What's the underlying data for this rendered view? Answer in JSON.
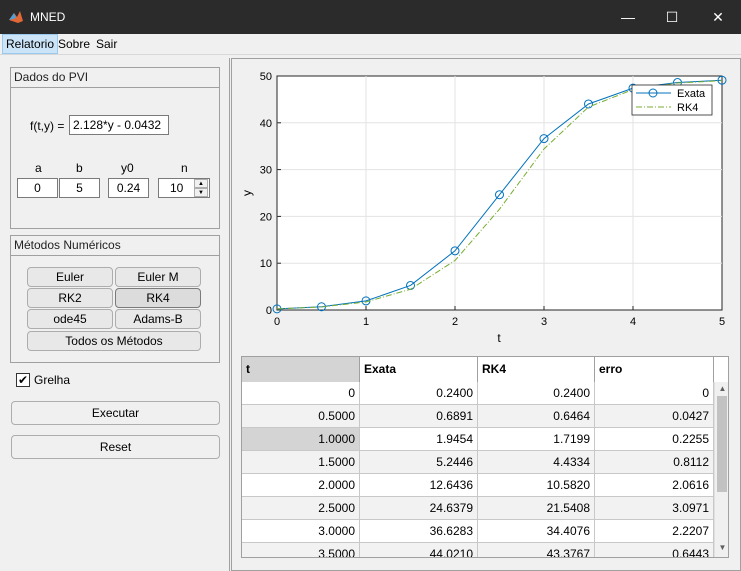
{
  "window": {
    "title": "MNED",
    "min_icon": "minimize-icon",
    "max_icon": "maximize-icon",
    "close_icon": "close-icon"
  },
  "menu": [
    "Relatorio",
    "Sobre",
    "Sair"
  ],
  "pvi": {
    "title": "Dados do PVI",
    "f_label": "f(t,y) =",
    "f_value": "2.128*y - 0.0432",
    "a_label": "a",
    "b_label": "b",
    "y0_label": "y0",
    "n_label": "n",
    "a": "0",
    "b": "5",
    "y0": "0.24",
    "n": "10"
  },
  "methods": {
    "title": "Métodos Numéricos",
    "euler": "Euler",
    "euler_m": "Euler M",
    "rk2": "RK2",
    "rk4": "RK4",
    "ode45": "ode45",
    "adams": "Adams-B",
    "todos": "Todos os Métodos"
  },
  "grelha": {
    "label": "Grelha",
    "checked": "✔"
  },
  "actions": {
    "executar": "Executar",
    "reset": "Reset"
  },
  "plot": {
    "xlabel": "t",
    "ylabel": "y",
    "xticks": [
      "0",
      "1",
      "2",
      "3",
      "4",
      "5"
    ],
    "yticks": [
      "0",
      "10",
      "20",
      "30",
      "40",
      "50"
    ],
    "legend_exata": "Exata",
    "legend_rk4": "RK4"
  },
  "chart_data": {
    "type": "line",
    "xlabel": "t",
    "ylabel": "y",
    "xlim": [
      0,
      5
    ],
    "ylim": [
      0,
      50
    ],
    "grid": true,
    "legend": "top-right",
    "x": [
      0,
      0.5,
      1.0,
      1.5,
      2.0,
      2.5,
      3.0,
      3.5,
      4.0,
      4.5,
      5.0
    ],
    "series": [
      {
        "name": "Exata",
        "values": [
          0.24,
          0.6891,
          1.9454,
          5.2446,
          12.6436,
          24.6379,
          36.6283,
          44.021,
          47.4,
          48.6,
          49.1
        ],
        "color": "#0072bd",
        "marker": "circle"
      },
      {
        "name": "RK4",
        "values": [
          0.24,
          0.6464,
          1.7199,
          4.4334,
          10.582,
          21.5408,
          34.4076,
          43.3767,
          47.1,
          48.5,
          49.0
        ],
        "color": "#77ac30",
        "style": "dash-dot"
      }
    ]
  },
  "table": {
    "headers": [
      "t",
      "Exata",
      "RK4",
      "erro"
    ],
    "rows": [
      [
        "0",
        "0.2400",
        "0.2400",
        "0"
      ],
      [
        "0.5000",
        "0.6891",
        "0.6464",
        "0.0427"
      ],
      [
        "1.0000",
        "1.9454",
        "1.7199",
        "0.2255"
      ],
      [
        "1.5000",
        "5.2446",
        "4.4334",
        "0.8112"
      ],
      [
        "2.0000",
        "12.6436",
        "10.5820",
        "2.0616"
      ],
      [
        "2.5000",
        "24.6379",
        "21.5408",
        "3.0971"
      ],
      [
        "3.0000",
        "36.6283",
        "34.4076",
        "2.2207"
      ],
      [
        "3.5000",
        "44.0210",
        "43.3767",
        "0.6443"
      ]
    ]
  }
}
